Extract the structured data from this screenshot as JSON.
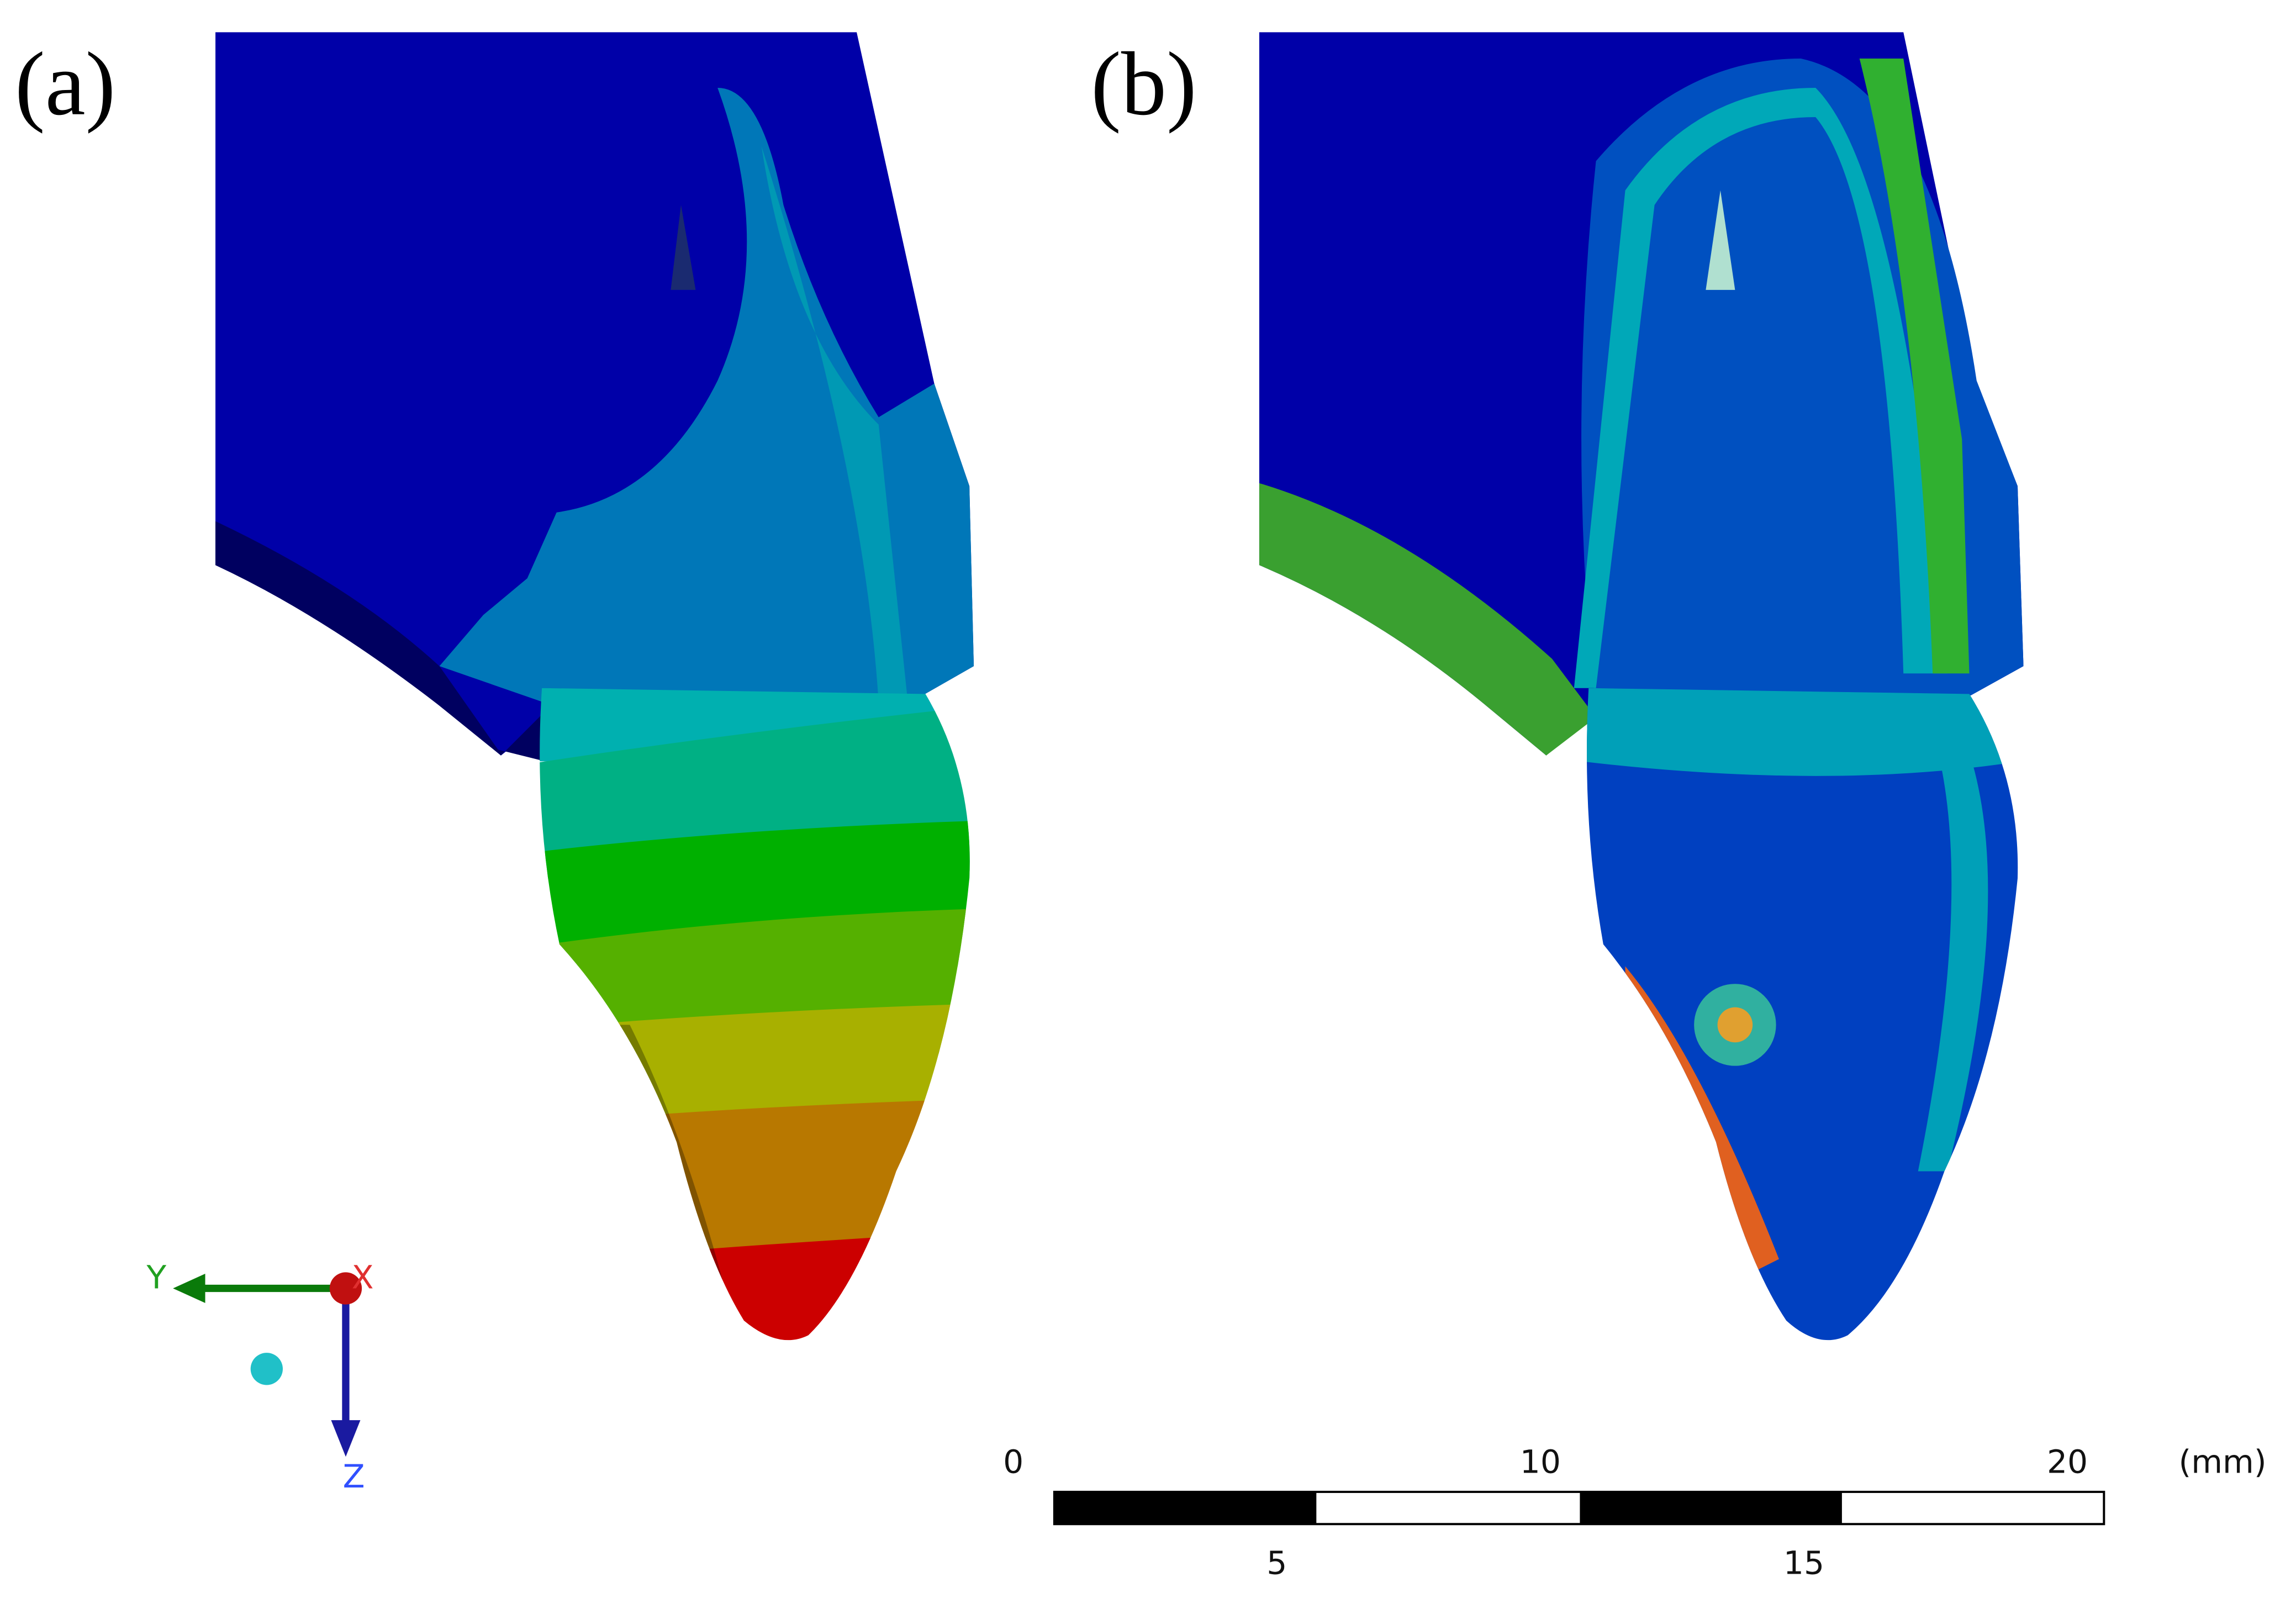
{
  "panels": [
    {
      "label": "(a)"
    },
    {
      "label": "(b)"
    }
  ],
  "axes_triad": {
    "y": "Y",
    "x": "X",
    "z": "Z"
  },
  "scale_bar": {
    "top_labels": [
      0,
      10,
      20
    ],
    "bottom_labels": [
      5,
      15
    ],
    "unit": "(mm)"
  }
}
